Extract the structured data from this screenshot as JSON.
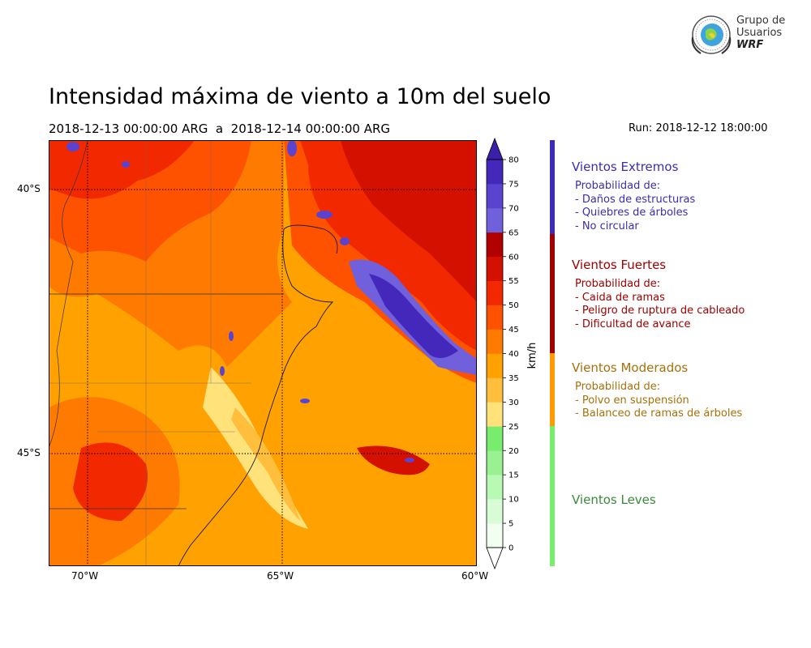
{
  "title": "Intensidad máxima de viento a 10m del suelo",
  "period": "2018-12-13 00:00:00 ARG  a  2018-12-14 00:00:00 ARG",
  "run": "Run: 2018-12-12 18:00:00",
  "logo": {
    "line1": "Grupo de",
    "line2": "Usuarios",
    "line3": "WRF"
  },
  "map": {
    "lon_ticks": [
      "70°W",
      "65°W",
      "60°W"
    ],
    "lat_ticks": [
      "40°S",
      "45°S"
    ]
  },
  "colorbar": {
    "label": "km/h",
    "ticks": [
      "80",
      "75",
      "70",
      "65",
      "60",
      "55",
      "50",
      "45",
      "40",
      "35",
      "30",
      "25",
      "20",
      "15",
      "10",
      "5",
      "0"
    ],
    "levels": [
      {
        "lo": 0,
        "color": "#f0fff0"
      },
      {
        "lo": 5,
        "color": "#d8fcd6"
      },
      {
        "lo": 10,
        "color": "#b8f9b3"
      },
      {
        "lo": 15,
        "color": "#99f191"
      },
      {
        "lo": 20,
        "color": "#78ec6c"
      },
      {
        "lo": 25,
        "color": "#ffe27a"
      },
      {
        "lo": 30,
        "color": "#ffbe3c"
      },
      {
        "lo": 35,
        "color": "#ffa100"
      },
      {
        "lo": 40,
        "color": "#ff7a00"
      },
      {
        "lo": 45,
        "color": "#ff5200"
      },
      {
        "lo": 50,
        "color": "#f22900"
      },
      {
        "lo": 55,
        "color": "#d41000"
      },
      {
        "lo": 60,
        "color": "#b00000"
      },
      {
        "lo": 65,
        "color": "#7060dc"
      },
      {
        "lo": 70,
        "color": "#5a44cf"
      },
      {
        "lo": 75,
        "color": "#4428bb"
      }
    ],
    "over_color": "#3a1fa8",
    "under_color": "#ffffff"
  },
  "categories": [
    {
      "name": "Vientos Extremos",
      "color": "#3a2db4",
      "line_color": "#3a2db4",
      "heading": "Probabilidad de:",
      "items": [
        "- Daños de estructuras",
        "- Quiebres de árboles",
        "- No circular"
      ]
    },
    {
      "name": "Vientos Fuertes",
      "color": "#a10000",
      "line_color": "#a10000",
      "heading": "Probabilidad de:",
      "items": [
        "- Caida de ramas",
        "- Peligro de ruptura de cableado",
        "- Dificultad de avance"
      ]
    },
    {
      "name": "Vientos Moderados",
      "color": "#a8700a",
      "line_color": "#ff9a00",
      "heading": "Probabilidad de:",
      "items": [
        "- Polvo en suspensión",
        "- Balanceo de ramas de árboles"
      ]
    },
    {
      "name": "Vientos Leves",
      "color": "#3a8a3a",
      "line_color": "#77ee6e",
      "heading": "",
      "items": []
    }
  ]
}
